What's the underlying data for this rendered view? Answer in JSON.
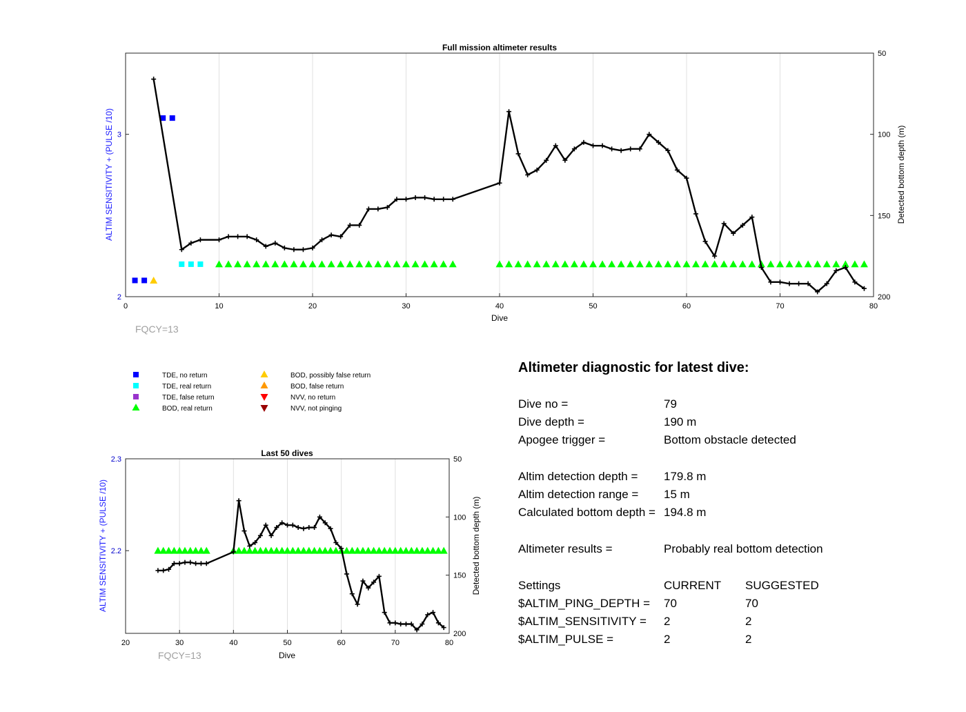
{
  "chart_data": [
    {
      "type": "line",
      "title": "Full mission altimeter results",
      "xlabel": "Dive",
      "ylabel_left": "ALTIM SENSITIVITY + (PULSE /10)",
      "ylabel_right": "Detected bottom depth (m)",
      "annotation": "FQCY=13",
      "xlim": [
        0,
        80
      ],
      "ylim_left": [
        2,
        3.5
      ],
      "ylim_right": [
        50,
        200
      ],
      "right_axis_reversed": true,
      "grid": "x",
      "x_ticks": [
        "0",
        "10",
        "20",
        "30",
        "40",
        "50",
        "60",
        "70",
        "80"
      ],
      "y_left_ticks": [
        "2",
        "3"
      ],
      "y_right_ticks": [
        "50",
        "100",
        "150",
        "200"
      ],
      "bottom_depth": {
        "x": [
          3,
          6,
          7,
          8,
          10,
          11,
          12,
          13,
          14,
          15,
          16,
          17,
          18,
          19,
          20,
          21,
          22,
          23,
          24,
          25,
          26,
          27,
          28,
          29,
          30,
          31,
          32,
          33,
          34,
          35,
          40,
          41,
          42,
          43,
          44,
          45,
          46,
          47,
          48,
          49,
          50,
          51,
          52,
          53,
          54,
          55,
          56,
          57,
          58,
          59,
          60,
          61,
          62,
          63,
          64,
          65,
          66,
          67,
          68,
          69,
          70,
          71,
          72,
          73,
          74,
          75,
          76,
          77,
          78,
          79
        ],
        "y": [
          66,
          171,
          167,
          165,
          165,
          163,
          163,
          163,
          165,
          169,
          167,
          170,
          171,
          171,
          170,
          165,
          162,
          163,
          156,
          156,
          146,
          146,
          145,
          140,
          140,
          139,
          139,
          140,
          140,
          140,
          130,
          86,
          112,
          125,
          122,
          116,
          107,
          116,
          109,
          105,
          107,
          107,
          109,
          110,
          109,
          109,
          100,
          105,
          110,
          122,
          127,
          149,
          166,
          175,
          155,
          161,
          156,
          151,
          182,
          191,
          191,
          192,
          192,
          192,
          197,
          192,
          184,
          182,
          191,
          195
        ]
      },
      "markers": {
        "tde_no_return": {
          "x": [
            1,
            2,
            4,
            5
          ],
          "y": [
            2.1,
            2.1,
            3.1,
            3.1
          ]
        },
        "tde_real_return": {
          "x": [
            6,
            7,
            8
          ],
          "y": [
            2.2,
            2.2,
            2.2
          ]
        },
        "bod_possibly_false_return": {
          "x": [
            3
          ],
          "y": [
            2.1
          ]
        },
        "bod_real_return": {
          "x": [
            10,
            11,
            12,
            13,
            14,
            15,
            16,
            17,
            18,
            19,
            20,
            21,
            22,
            23,
            24,
            25,
            26,
            27,
            28,
            29,
            30,
            31,
            32,
            33,
            34,
            35,
            40,
            41,
            42,
            43,
            44,
            45,
            46,
            47,
            48,
            49,
            50,
            51,
            52,
            53,
            54,
            55,
            56,
            57,
            58,
            59,
            60,
            61,
            62,
            63,
            64,
            65,
            66,
            67,
            68,
            69,
            70,
            71,
            72,
            73,
            74,
            75,
            76,
            77,
            78,
            79
          ],
          "y": 2.2
        }
      }
    },
    {
      "type": "line",
      "title": "Last 50 dives",
      "xlabel": "Dive",
      "ylabel_left": "ALTIM SENSITIVITY + (PULSE /10)",
      "ylabel_right": "Detected bottom depth (m)",
      "annotation": "FQCY=13",
      "xlim": [
        20,
        80
      ],
      "ylim_left": [
        2.11,
        2.3
      ],
      "ylim_right": [
        50,
        200
      ],
      "right_axis_reversed": true,
      "grid": "x",
      "x_ticks": [
        "20",
        "30",
        "40",
        "50",
        "60",
        "70",
        "80"
      ],
      "y_left_ticks": [
        "2.2",
        "2.3"
      ],
      "y_right_ticks": [
        "50",
        "100",
        "150",
        "200"
      ],
      "bottom_depth": {
        "x": [
          26,
          27,
          28,
          29,
          30,
          31,
          32,
          33,
          34,
          35,
          40,
          41,
          42,
          43,
          44,
          45,
          46,
          47,
          48,
          49,
          50,
          51,
          52,
          53,
          54,
          55,
          56,
          57,
          58,
          59,
          60,
          61,
          62,
          63,
          64,
          65,
          66,
          67,
          68,
          69,
          70,
          71,
          72,
          73,
          74,
          75,
          76,
          77,
          78,
          79
        ],
        "y": [
          146,
          146,
          145,
          140,
          140,
          139,
          139,
          140,
          140,
          140,
          130,
          86,
          112,
          125,
          122,
          116,
          107,
          116,
          109,
          105,
          107,
          107,
          109,
          110,
          109,
          109,
          100,
          105,
          110,
          122,
          127,
          149,
          166,
          175,
          155,
          161,
          156,
          151,
          182,
          191,
          191,
          192,
          192,
          192,
          197,
          192,
          184,
          182,
          191,
          195
        ]
      },
      "markers": {
        "bod_real_return": {
          "x": [
            26,
            27,
            28,
            29,
            30,
            31,
            32,
            33,
            34,
            35,
            40,
            41,
            42,
            43,
            44,
            45,
            46,
            47,
            48,
            49,
            50,
            51,
            52,
            53,
            54,
            55,
            56,
            57,
            58,
            59,
            60,
            61,
            62,
            63,
            64,
            65,
            66,
            67,
            68,
            69,
            70,
            71,
            72,
            73,
            74,
            75,
            76,
            77,
            78,
            79
          ],
          "y": 2.2
        }
      }
    }
  ],
  "legend": {
    "items": [
      {
        "label": "TDE, no return",
        "marker": "square",
        "color": "#0000ff"
      },
      {
        "label": "TDE, real return",
        "marker": "square",
        "color": "#00ffff"
      },
      {
        "label": "TDE, false return",
        "marker": "square",
        "color": "#9933cc"
      },
      {
        "label": "BOD, real return",
        "marker": "triangle-up",
        "color": "#00ff00"
      },
      {
        "label": "BOD, possibly false return",
        "marker": "triangle-up",
        "color": "#ffcc00"
      },
      {
        "label": "BOD, false return",
        "marker": "triangle-up",
        "color": "#ff9900"
      },
      {
        "label": "NVV, no return",
        "marker": "triangle-down",
        "color": "#ff0000"
      },
      {
        "label": "NVV, not pinging",
        "marker": "triangle-down",
        "color": "#990000"
      }
    ]
  },
  "diagnostic": {
    "title": "Altimeter diagnostic for latest dive:",
    "dive_no_label": "Dive no =",
    "dive_no_value": "79",
    "dive_depth_label": "Dive depth =",
    "dive_depth_value": "190 m",
    "apogee_label": "Apogee trigger =",
    "apogee_value": "Bottom obstacle detected",
    "altim_depth_label": "Altim detection depth =",
    "altim_depth_value": "179.8 m",
    "altim_range_label": "Altim detection range =",
    "altim_range_value": "15 m",
    "calc_depth_label": "Calculated bottom depth =",
    "calc_depth_value": "194.8 m",
    "results_label": "Altimeter results =",
    "results_value": "Probably real bottom detection",
    "settings_label": "Settings",
    "current_label": "CURRENT",
    "suggested_label": "SUGGESTED",
    "ping_depth_label": "$ALTIM_PING_DEPTH =",
    "ping_depth_current": "70",
    "ping_depth_suggested": "70",
    "sensitivity_label": "$ALTIM_SENSITIVITY =",
    "sensitivity_current": "2",
    "sensitivity_suggested": "2",
    "pulse_label": "$ALTIM_PULSE =",
    "pulse_current": "2",
    "pulse_suggested": "2"
  },
  "colors": {
    "line": "#000000",
    "left_axis": "#0000cc",
    "grid": "#e0e0e0",
    "annotation": "#a0a0a0"
  }
}
